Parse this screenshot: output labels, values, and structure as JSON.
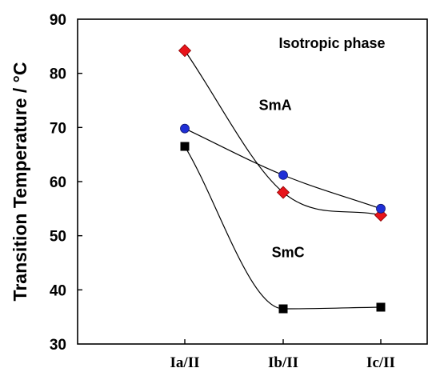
{
  "chart_data": {
    "type": "line",
    "categories": [
      "Ia/II",
      "Ib/II",
      "Ic/II"
    ],
    "ylabel": "Transition Temperature / °C",
    "ylim": [
      30,
      90
    ],
    "yticks": [
      30,
      40,
      50,
      60,
      70,
      80,
      90
    ],
    "grid": false,
    "series": [
      {
        "values": [
          84.2,
          58.0,
          53.8
        ],
        "marker": "diamond",
        "color": "#e8141b"
      },
      {
        "values": [
          69.8,
          61.2,
          55.0
        ],
        "marker": "circle",
        "color": "#1f2fd6"
      },
      {
        "values": [
          66.5,
          36.5,
          36.8
        ],
        "marker": "square",
        "color": "#000000"
      }
    ],
    "annotations": [
      {
        "text": "Isotropic phase",
        "at": {
          "x": 1.5,
          "y": 84.7
        }
      },
      {
        "text": "SmA",
        "at": {
          "x": 0.92,
          "y": 73.2
        }
      },
      {
        "text": "SmC",
        "at": {
          "x": 1.05,
          "y": 46.0
        }
      }
    ]
  }
}
